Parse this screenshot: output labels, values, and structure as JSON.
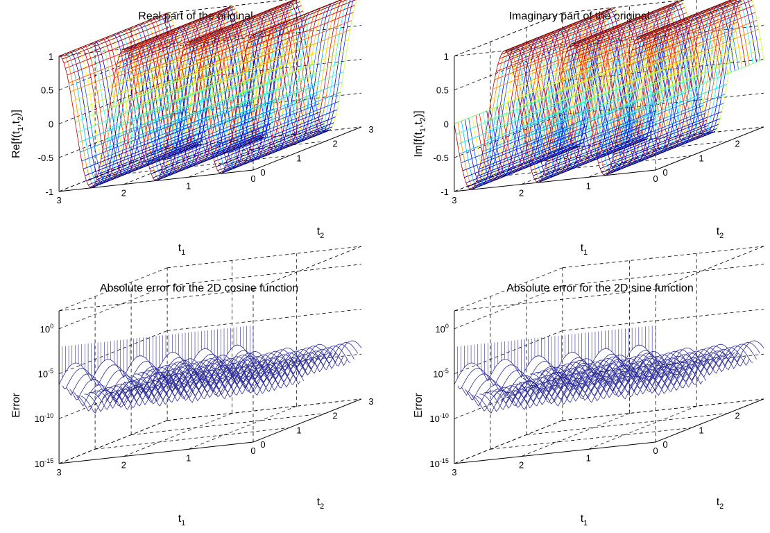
{
  "chart_data": [
    {
      "type": "surface",
      "title": "Real part of the original",
      "xlabel": "t",
      "xlabel_sub": "1",
      "ylabel": "t",
      "ylabel_sub": "2",
      "zlabel": "Re[f(t",
      "zlabel_sub1": "1",
      "zlabel_mid": ",t",
      "zlabel_sub2": "2",
      "zlabel_end": ")]",
      "xlim": [
        0,
        3
      ],
      "ylim": [
        0,
        3
      ],
      "zlim": [
        -1,
        1
      ],
      "zscale": "linear",
      "xticks": [
        "0",
        "1",
        "2",
        "3"
      ],
      "yticks": [
        "0",
        "1",
        "2",
        "3"
      ],
      "zticks": [
        "-1",
        "-0.5",
        "0",
        "0.5",
        "1"
      ],
      "function": "cos(2*pi*t1) surface sampled on [0,3]x[0,3]",
      "colormap": "jet",
      "grid": true
    },
    {
      "type": "surface",
      "title": "Imaginary part of the original",
      "xlabel": "t",
      "xlabel_sub": "1",
      "ylabel": "t",
      "ylabel_sub": "2",
      "zlabel": "Im[f(t",
      "zlabel_sub1": "1",
      "zlabel_mid": ",t",
      "zlabel_sub2": "2",
      "zlabel_end": ")]",
      "xlim": [
        0,
        3
      ],
      "ylim": [
        0,
        3
      ],
      "zlim": [
        -1,
        1
      ],
      "zscale": "linear",
      "xticks": [
        "0",
        "1",
        "2",
        "3"
      ],
      "yticks": [
        "0",
        "1",
        "2",
        "3"
      ],
      "zticks": [
        "-1",
        "-0.5",
        "0",
        "0.5",
        "1"
      ],
      "function": "sin(2*pi*t1) surface sampled on [0,3]x[0,3]",
      "colormap": "jet",
      "grid": true
    },
    {
      "type": "surface",
      "title": "Absolute error for the 2D cosine function",
      "xlabel": "t",
      "xlabel_sub": "1",
      "ylabel": "t",
      "ylabel_sub": "2",
      "zlabel": "Error",
      "xlim": [
        0,
        3
      ],
      "ylim": [
        0,
        3
      ],
      "zlim": [
        1e-15,
        100
      ],
      "zscale": "log",
      "xticks": [
        "0",
        "1",
        "2",
        "3"
      ],
      "yticks": [
        "0",
        "1",
        "2",
        "3"
      ],
      "zticks": [
        {
          "base": "10",
          "exp": "-15"
        },
        {
          "base": "10",
          "exp": "-10"
        },
        {
          "base": "10",
          "exp": "-5"
        },
        {
          "base": "10",
          "exp": "0"
        }
      ],
      "colormap": "blue",
      "grid": true
    },
    {
      "type": "surface",
      "title": "Absolute error for the 2D sine function",
      "xlabel": "t",
      "xlabel_sub": "1",
      "ylabel": "t",
      "ylabel_sub": "2",
      "zlabel": "Error",
      "xlim": [
        0,
        3
      ],
      "ylim": [
        0,
        3
      ],
      "zlim": [
        1e-15,
        100
      ],
      "zscale": "log",
      "xticks": [
        "0",
        "1",
        "2",
        "3"
      ],
      "yticks": [
        "0",
        "1",
        "2",
        "3"
      ],
      "zticks": [
        {
          "base": "10",
          "exp": "-15"
        },
        {
          "base": "10",
          "exp": "-10"
        },
        {
          "base": "10",
          "exp": "-5"
        },
        {
          "base": "10",
          "exp": "0"
        }
      ],
      "colormap": "blue",
      "grid": true
    }
  ]
}
